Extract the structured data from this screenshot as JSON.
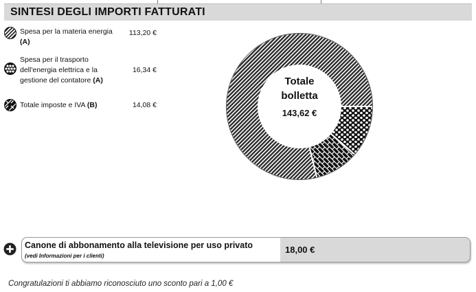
{
  "header": {
    "title": "SINTESI DEGLI IMPORTI FATTURATI"
  },
  "legend": [
    {
      "label_main": "Spesa per la materia energia",
      "label_tag": "(A)",
      "value": "113,20 €",
      "icon": "diagonal-hatch-icon"
    },
    {
      "label_main": "Spesa per il trasporto dell'energia elettrica e la gestione del contatore",
      "label_tag": "(A)",
      "value": "16,34 €",
      "icon": "hexagon-pattern-icon"
    },
    {
      "label_main": "Totale imposte e IVA",
      "label_tag": "(B)",
      "value": "14,08 €",
      "icon": "brick-pattern-icon"
    }
  ],
  "chart_data": {
    "type": "pie",
    "variant": "donut",
    "slices": [
      {
        "label": "Spesa per la materia energia",
        "value": 113.2,
        "pattern": "diagonal-hatch"
      },
      {
        "label": "Spesa per il trasporto dell'energia elettrica e la gestione del contatore",
        "value": 16.34,
        "pattern": "hexagons"
      },
      {
        "label": "Totale imposte e IVA",
        "value": 14.08,
        "pattern": "bricks"
      }
    ],
    "center_label": {
      "line1": "Totale",
      "line2": "bolletta",
      "value": "143,62 €"
    }
  },
  "canone": {
    "title": "Canone di abbonamento alla televisione per uso privato",
    "subtitle": "(vedi Informazioni per i clienti)",
    "amount": "18,00 €",
    "icon": "plus-circle-icon"
  },
  "note": "Congratulazioni ti abbiamo riconosciuto uno sconto pari a 1,00 €"
}
